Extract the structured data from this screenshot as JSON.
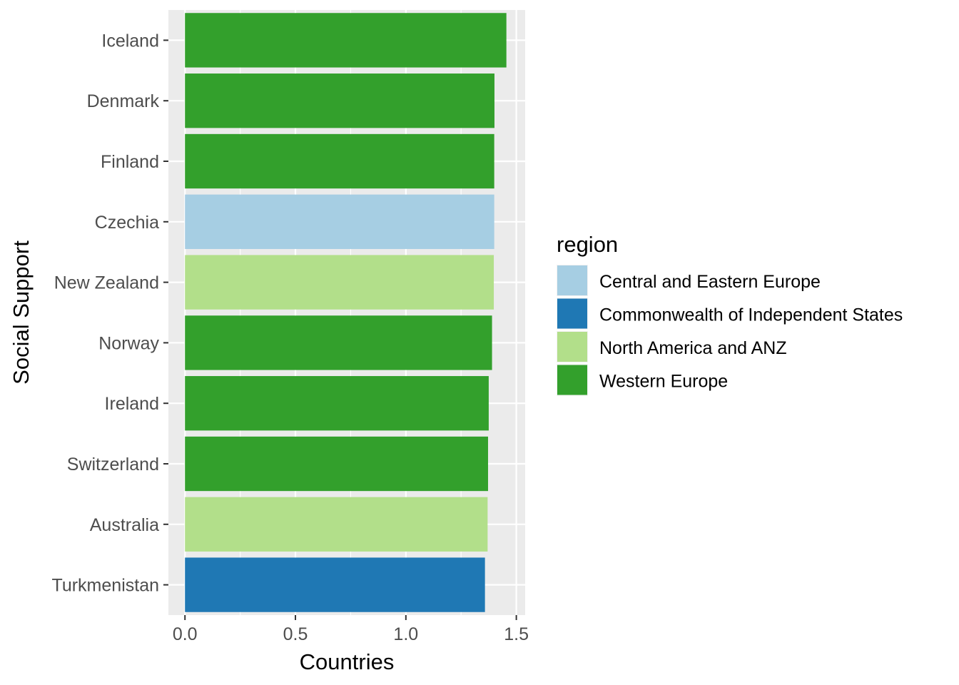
{
  "chart_data": {
    "type": "bar",
    "orientation": "horizontal",
    "title": "",
    "xlabel": "Countries",
    "ylabel": "Social Support",
    "xlim": [
      -0.075,
      1.54
    ],
    "xticks": [
      0.0,
      0.5,
      1.0,
      1.5
    ],
    "xtick_labels": [
      "0.0",
      "0.5",
      "1.0",
      "1.5"
    ],
    "grid": true,
    "legend_position": "right",
    "legend_title": "region",
    "categories": [
      "Iceland",
      "Denmark",
      "Finland",
      "Czechia",
      "New Zealand",
      "Norway",
      "Ireland",
      "Switzerland",
      "Australia",
      "Turkmenistan"
    ],
    "values": [
      1.455,
      1.401,
      1.4,
      1.4,
      1.398,
      1.39,
      1.375,
      1.372,
      1.37,
      1.358
    ],
    "regions": [
      "Western Europe",
      "Western Europe",
      "Western Europe",
      "Central and Eastern Europe",
      "North America and ANZ",
      "Western Europe",
      "Western Europe",
      "Western Europe",
      "North America and ANZ",
      "Commonwealth of Independent States"
    ],
    "legend": [
      {
        "name": "Central and Eastern Europe",
        "color": "#a6cee3"
      },
      {
        "name": "Commonwealth of Independent States",
        "color": "#1f78b4"
      },
      {
        "name": "North America and ANZ",
        "color": "#b2df8a"
      },
      {
        "name": "Western Europe",
        "color": "#33a02c"
      }
    ],
    "panel_background": "#ebebeb",
    "grid_color": "#ffffff"
  }
}
